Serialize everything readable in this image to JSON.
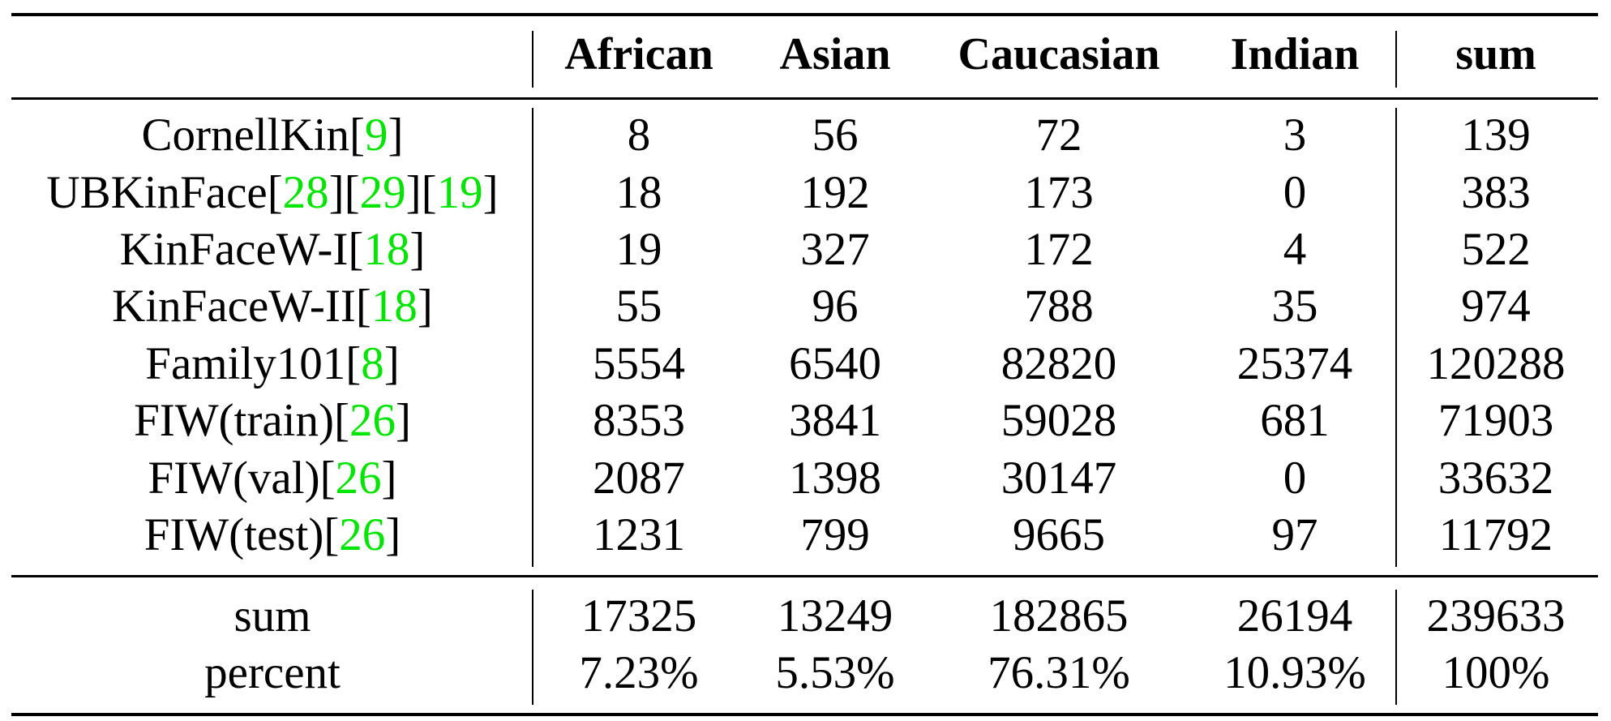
{
  "table": {
    "headers": [
      "",
      "African",
      "Asian",
      "Caucasian",
      "Indian",
      "sum"
    ],
    "rows": [
      {
        "name": "CornellKin",
        "refs": [
          "9"
        ],
        "values": [
          "8",
          "56",
          "72",
          "3",
          "139"
        ]
      },
      {
        "name": "UBKinFace",
        "refs": [
          "28",
          "29",
          "19"
        ],
        "values": [
          "18",
          "192",
          "173",
          "0",
          "383"
        ]
      },
      {
        "name": "KinFaceW-I",
        "refs": [
          "18"
        ],
        "values": [
          "19",
          "327",
          "172",
          "4",
          "522"
        ]
      },
      {
        "name": "KinFaceW-II",
        "refs": [
          "18"
        ],
        "values": [
          "55",
          "96",
          "788",
          "35",
          "974"
        ]
      },
      {
        "name": "Family101",
        "refs": [
          "8"
        ],
        "values": [
          "5554",
          "6540",
          "82820",
          "25374",
          "120288"
        ]
      },
      {
        "name": "FIW(train)",
        "refs": [
          "26"
        ],
        "values": [
          "8353",
          "3841",
          "59028",
          "681",
          "71903"
        ]
      },
      {
        "name": "FIW(val)",
        "refs": [
          "26"
        ],
        "values": [
          "2087",
          "1398",
          "30147",
          "0",
          "33632"
        ]
      },
      {
        "name": "FIW(test)",
        "refs": [
          "26"
        ],
        "values": [
          "1231",
          "799",
          "9665",
          "97",
          "11792"
        ]
      }
    ],
    "summary": [
      {
        "name": "sum",
        "values": [
          "17325",
          "13249",
          "182865",
          "26194",
          "239633"
        ]
      },
      {
        "name": "percent",
        "values": [
          "7.23%",
          "5.53%",
          "76.31%",
          "10.93%",
          "100%"
        ]
      }
    ]
  }
}
